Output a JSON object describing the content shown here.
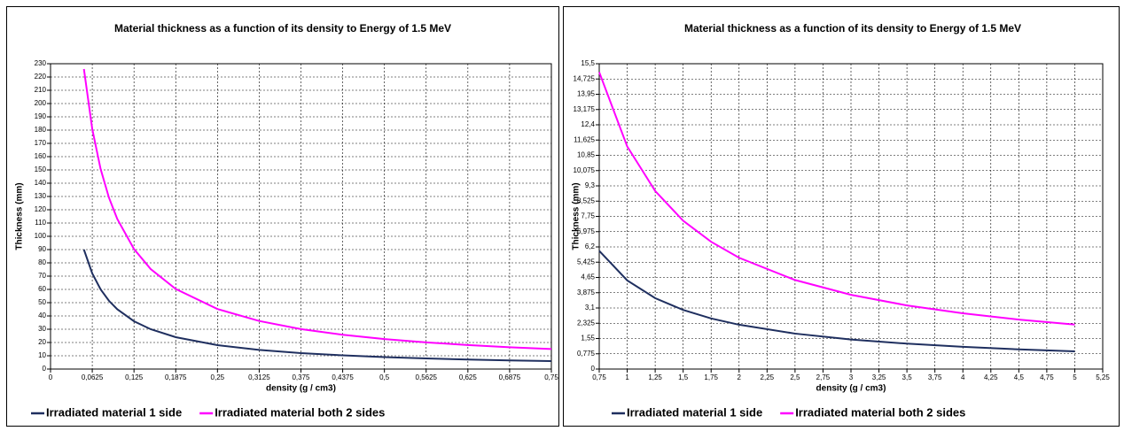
{
  "chart_data": [
    {
      "type": "line",
      "title": "Material thickness  as a function of its density to Energy of 1.5 MeV",
      "x_label": "density (g / cm3)",
      "y_label": "Thickness (mm)",
      "x": [
        0.05,
        0.0625,
        0.075,
        0.0875,
        0.1,
        0.125,
        0.15,
        0.1875,
        0.25,
        0.3125,
        0.375,
        0.4375,
        0.5,
        0.5625,
        0.625,
        0.6875,
        0.75
      ],
      "series": [
        {
          "name": "Irradiated material 1 side",
          "color": "#1f2f5f",
          "values": [
            90,
            72,
            60,
            51.4,
            45,
            36,
            30,
            24,
            18,
            14.4,
            12,
            10.3,
            9,
            8,
            7.2,
            6.5,
            6
          ]
        },
        {
          "name": "Irradiated material both 2 sides",
          "color": "#ff00ff",
          "values": [
            226,
            180.8,
            150.7,
            129.1,
            113,
            90.4,
            75.3,
            60.3,
            45.2,
            36.2,
            30.1,
            25.8,
            22.6,
            20.1,
            18.1,
            16.4,
            15.1
          ]
        }
      ],
      "xlim": [
        0,
        0.75
      ],
      "xticks": [
        0,
        {
          "value": 0.0625,
          "label": "0,0625"
        },
        {
          "value": 0.125,
          "label": "0,125"
        },
        {
          "value": 0.1875,
          "label": "0,1875"
        },
        {
          "value": 0.25,
          "label": "0,25"
        },
        {
          "value": 0.3125,
          "label": "0,3125"
        },
        {
          "value": 0.375,
          "label": "0,375"
        },
        {
          "value": 0.4375,
          "label": "0,4375"
        },
        {
          "value": 0.5,
          "label": "0,5"
        },
        {
          "value": 0.5625,
          "label": "0,5625"
        },
        {
          "value": 0.625,
          "label": "0,625"
        },
        {
          "value": 0.6875,
          "label": "0,6875"
        },
        {
          "value": 0.75,
          "label": "0,75"
        }
      ],
      "ylim": [
        0,
        230
      ],
      "yticks": [
        0,
        10,
        20,
        30,
        40,
        50,
        60,
        70,
        80,
        90,
        100,
        110,
        120,
        130,
        140,
        150,
        160,
        170,
        180,
        190,
        200,
        210,
        220,
        230
      ],
      "grid": true,
      "legend": "bottom"
    },
    {
      "type": "line",
      "title": "Material thickness as a function of its density to Energy of 1.5 MeV",
      "x_label": "density (g / cm3)",
      "y_label": "Thickness (mm)",
      "x": [
        0.75,
        1,
        1.25,
        1.5,
        1.75,
        2,
        2.5,
        3,
        3.5,
        4,
        4.5,
        5
      ],
      "series": [
        {
          "name": "Irradiated material 1 side",
          "color": "#1f2f5f",
          "values": [
            6,
            4.5,
            3.6,
            3,
            2.57,
            2.25,
            1.8,
            1.5,
            1.29,
            1.13,
            1,
            0.9
          ]
        },
        {
          "name": "Irradiated material both 2 sides",
          "color": "#ff00ff",
          "values": [
            15.07,
            11.3,
            9.04,
            7.53,
            6.46,
            5.65,
            4.52,
            3.77,
            3.23,
            2.83,
            2.51,
            2.26
          ]
        }
      ],
      "xlim": [
        0.75,
        5.25
      ],
      "xticks": [
        {
          "value": 0.75,
          "label": "0,75"
        },
        1,
        {
          "value": 1.25,
          "label": "1,25"
        },
        {
          "value": 1.5,
          "label": "1,5"
        },
        {
          "value": 1.75,
          "label": "1,75"
        },
        2,
        {
          "value": 2.25,
          "label": "2,25"
        },
        {
          "value": 2.5,
          "label": "2,5"
        },
        {
          "value": 2.75,
          "label": "2,75"
        },
        3,
        {
          "value": 3.25,
          "label": "3,25"
        },
        {
          "value": 3.5,
          "label": "3,5"
        },
        {
          "value": 3.75,
          "label": "3,75"
        },
        4,
        {
          "value": 4.25,
          "label": "4,25"
        },
        {
          "value": 4.5,
          "label": "4,5"
        },
        {
          "value": 4.75,
          "label": "4,75"
        },
        5,
        {
          "value": 5.25,
          "label": "5,25"
        }
      ],
      "ylim": [
        0,
        15.5
      ],
      "yticks": [
        0,
        {
          "value": 0.775,
          "label": "0,775"
        },
        {
          "value": 1.55,
          "label": "1,55"
        },
        {
          "value": 2.325,
          "label": "2,325"
        },
        {
          "value": 3.1,
          "label": "3,1"
        },
        {
          "value": 3.875,
          "label": "3,875"
        },
        {
          "value": 4.65,
          "label": "4,65"
        },
        {
          "value": 5.425,
          "label": "5,425"
        },
        {
          "value": 6.2,
          "label": "6,2"
        },
        {
          "value": 6.975,
          "label": "6,975"
        },
        {
          "value": 7.75,
          "label": "7,75"
        },
        {
          "value": 8.525,
          "label": "8,525"
        },
        {
          "value": 9.3,
          "label": "9,3"
        },
        {
          "value": 10.075,
          "label": "10,075"
        },
        {
          "value": 10.85,
          "label": "10,85"
        },
        {
          "value": 11.625,
          "label": "11,625"
        },
        {
          "value": 12.4,
          "label": "12,4"
        },
        {
          "value": 13.175,
          "label": "13,175"
        },
        {
          "value": 13.95,
          "label": "13,95"
        },
        {
          "value": 14.725,
          "label": "14,725"
        },
        {
          "value": 15.5,
          "label": "15,5"
        }
      ],
      "grid": true,
      "legend": "bottom"
    }
  ]
}
